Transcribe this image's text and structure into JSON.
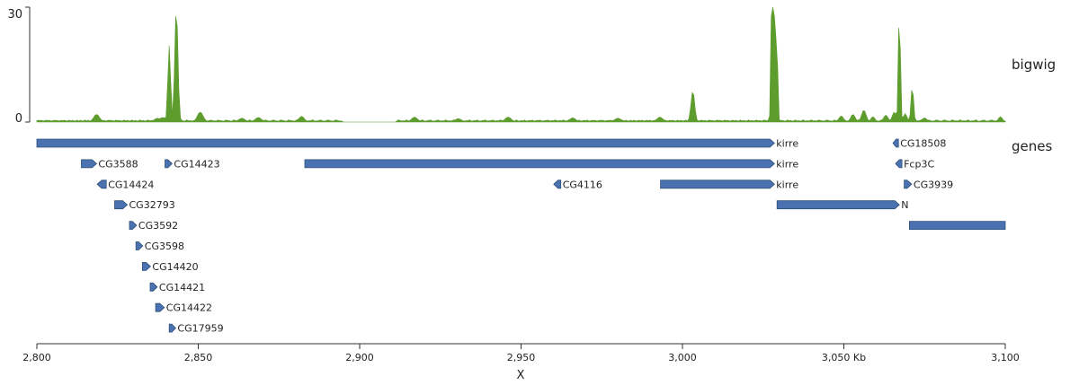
{
  "chart_data": {
    "type": "genome-tracks",
    "x_range": [
      2800,
      3100
    ],
    "xlabel": "X",
    "ticks": [
      {
        "value": 2800,
        "label": "2,800"
      },
      {
        "value": 2850,
        "label": "2,850"
      },
      {
        "value": 2900,
        "label": "2,900"
      },
      {
        "value": 2950,
        "label": "2,950"
      },
      {
        "value": 3000,
        "label": "3,000"
      },
      {
        "value": 3050,
        "label": "3,050 Kb"
      },
      {
        "value": 3100,
        "label": "3,100"
      }
    ],
    "tracks": {
      "bigwig": {
        "label": "bigwig",
        "type": "area",
        "color": "#5d9d2e",
        "ylim": [
          0,
          30
        ],
        "ytick_top": "30",
        "ytick_bottom": "0",
        "baseline": 0.6,
        "x_start": 2800,
        "step": 0.5,
        "gaps": [
          [
            2895,
            2911
          ]
        ],
        "peaks": [
          [
            2818.5,
            2.0,
            1.3
          ],
          [
            2837.4,
            1.0,
            1.5
          ],
          [
            2839.0,
            1.2,
            1.6
          ],
          [
            2841.0,
            20,
            0.6
          ],
          [
            2843.2,
            30,
            0.7
          ],
          [
            2850.6,
            2.6,
            1.3
          ],
          [
            2863.5,
            1.0,
            1.4
          ],
          [
            2868.6,
            1.2,
            1.4
          ],
          [
            2882.0,
            1.5,
            1.2
          ],
          [
            2917.0,
            1.3,
            1.3
          ],
          [
            2930.5,
            0.9,
            1.3
          ],
          [
            2946.0,
            1.3,
            1.4
          ],
          [
            2966.0,
            1.1,
            1.4
          ],
          [
            2980.0,
            1.0,
            1.5
          ],
          [
            2993.0,
            1.3,
            1.3
          ],
          [
            3003.2,
            8.2,
            0.8
          ],
          [
            3027.6,
            30,
            0.35
          ],
          [
            3028.0,
            30,
            0.35
          ],
          [
            3028.4,
            30,
            0.35
          ],
          [
            3028.8,
            30,
            0.35
          ],
          [
            3029.2,
            30,
            0.35
          ],
          [
            3049.2,
            1.6,
            1.0
          ],
          [
            3052.8,
            2.0,
            1.0
          ],
          [
            3056.2,
            3.1,
            1.0
          ],
          [
            3059.0,
            1.4,
            0.9
          ],
          [
            3063.0,
            1.8,
            1.0
          ],
          [
            3065.6,
            2.6,
            0.9
          ],
          [
            3067.2,
            30,
            0.45
          ],
          [
            3069.0,
            2.2,
            0.8
          ],
          [
            3071.2,
            9.5,
            0.55
          ],
          [
            3075.0,
            1.1,
            1.0
          ],
          [
            3098.5,
            1.4,
            0.9
          ]
        ]
      },
      "genes": {
        "label": "genes",
        "color": "#4a72b0",
        "stroke": "#2f4f7a",
        "items": [
          {
            "name": "kirre",
            "start": 2800.0,
            "end": 3028.5,
            "row": 0,
            "strand": "+"
          },
          {
            "name": "CG18508",
            "start": 3065.2,
            "end": 3066.9,
            "row": 0,
            "strand": "-"
          },
          {
            "name": "CG3588",
            "start": 2813.8,
            "end": 2818.5,
            "row": 1,
            "strand": "+"
          },
          {
            "name": "CG14423",
            "start": 2839.7,
            "end": 2841.9,
            "row": 1,
            "strand": "+"
          },
          {
            "name": "kirre",
            "start": 2883.0,
            "end": 3028.5,
            "row": 1,
            "strand": "+"
          },
          {
            "name": "Fcp3C",
            "start": 3066.0,
            "end": 3068.0,
            "row": 1,
            "strand": "-"
          },
          {
            "name": "CG14424",
            "start": 2818.7,
            "end": 2821.5,
            "row": 2,
            "strand": "-"
          },
          {
            "name": "CG4116",
            "start": 2960.1,
            "end": 2962.3,
            "row": 2,
            "strand": "-"
          },
          {
            "name": "kirre",
            "start": 2993.2,
            "end": 3028.5,
            "row": 2,
            "strand": "+"
          },
          {
            "name": "CG3939",
            "start": 3068.7,
            "end": 3071.0,
            "row": 2,
            "strand": "+"
          },
          {
            "name": "CG32793",
            "start": 2824.1,
            "end": 2828.0,
            "row": 3,
            "strand": "+"
          },
          {
            "name": "N",
            "start": 3029.3,
            "end": 3067.2,
            "row": 3,
            "strand": "+"
          },
          {
            "name": "CG3592",
            "start": 2828.7,
            "end": 2830.9,
            "row": 4,
            "strand": "+"
          },
          {
            "name": "",
            "start": 3070.3,
            "end": 3100.0,
            "row": 4,
            "strand": "."
          },
          {
            "name": "CG3598",
            "start": 2830.7,
            "end": 2832.8,
            "row": 5,
            "strand": "+"
          },
          {
            "name": "CG14420",
            "start": 2832.7,
            "end": 2835.2,
            "row": 6,
            "strand": "+"
          },
          {
            "name": "CG14421",
            "start": 2835.1,
            "end": 2837.3,
            "row": 7,
            "strand": "+"
          },
          {
            "name": "CG14422",
            "start": 2836.8,
            "end": 2839.5,
            "row": 8,
            "strand": "+"
          },
          {
            "name": "CG17959",
            "start": 2841.0,
            "end": 2843.0,
            "row": 9,
            "strand": "+"
          }
        ]
      }
    }
  }
}
